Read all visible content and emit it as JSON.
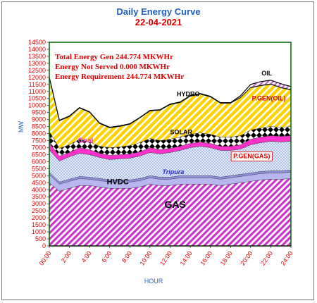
{
  "title": "Daily Energy Curve",
  "subtitle": "22-04-2021",
  "annotations": [
    "Total Energy Gen 244.774 MKWHr",
    "Energy Not Served   0.000 MKWHr",
    "Energy Requirement     244.774 MKWHr"
  ],
  "chart_data": {
    "type": "area",
    "stacked": true,
    "xlabel": "HOUR",
    "ylabel": "MW",
    "ylim": [
      0,
      14500
    ],
    "ystep": 500,
    "xlim": [
      0,
      24
    ],
    "xticks": [
      "00:00",
      "2:00",
      "4:00",
      "6:00",
      "8:00",
      "10:00",
      "12:00",
      "14:00",
      "16:00",
      "18:00",
      "20:00",
      "22:00",
      "24:00"
    ],
    "x": [
      0,
      1,
      2,
      3,
      4,
      5,
      6,
      7,
      8,
      9,
      10,
      11,
      12,
      13,
      14,
      15,
      16,
      17,
      18,
      19,
      20,
      21,
      22,
      23,
      24
    ],
    "series": [
      {
        "name": "GAS",
        "values": [
          4500,
          3900,
          4100,
          4300,
          4300,
          4200,
          4100,
          4100,
          4100,
          4200,
          4400,
          4300,
          4300,
          4400,
          4400,
          4400,
          4400,
          4300,
          4400,
          4500,
          4600,
          4700,
          4750,
          4750,
          4800
        ]
      },
      {
        "name": "HVDC",
        "values": [
          600,
          500,
          500,
          500,
          450,
          450,
          450,
          450,
          450,
          450,
          450,
          450,
          450,
          450,
          450,
          450,
          450,
          450,
          450,
          450,
          450,
          450,
          450,
          450,
          450
        ]
      },
      {
        "name": "Tripura",
        "values": [
          150,
          150,
          150,
          150,
          150,
          150,
          150,
          150,
          150,
          150,
          150,
          150,
          150,
          150,
          150,
          150,
          150,
          150,
          150,
          150,
          150,
          150,
          150,
          150,
          150
        ]
      },
      {
        "name": "P.GEN(GAS)",
        "values": [
          1600,
          1500,
          1600,
          1650,
          1600,
          1500,
          1450,
          1500,
          1550,
          1600,
          1650,
          1650,
          1750,
          1800,
          2000,
          2100,
          2000,
          1900,
          1800,
          1800,
          2000,
          2050,
          2100,
          2050,
          2050
        ]
      },
      {
        "name": "Coal",
        "values": [
          500,
          350,
          300,
          400,
          350,
          300,
          300,
          300,
          300,
          300,
          350,
          300,
          300,
          300,
          300,
          300,
          300,
          300,
          300,
          300,
          400,
          400,
          400,
          400,
          400
        ]
      },
      {
        "name": "SOLAR",
        "values": [
          800,
          550,
          550,
          600,
          550,
          500,
          550,
          550,
          600,
          650,
          650,
          650,
          650,
          650,
          650,
          650,
          650,
          650,
          650,
          650,
          650,
          650,
          650,
          650,
          650
        ]
      },
      {
        "name": "P.GEN(OIL)",
        "values": [
          3800,
          1950,
          2000,
          2200,
          2100,
          1600,
          1400,
          1450,
          1500,
          1750,
          1950,
          2150,
          2450,
          2450,
          2700,
          2750,
          2650,
          2400,
          2400,
          2700,
          3000,
          3000,
          3000,
          2800,
          2600
        ]
      },
      {
        "name": "HYDRO",
        "values": [
          50,
          50,
          50,
          50,
          50,
          50,
          50,
          50,
          50,
          50,
          50,
          50,
          50,
          50,
          50,
          50,
          50,
          50,
          50,
          50,
          50,
          50,
          50,
          50,
          50
        ]
      },
      {
        "name": "OIL",
        "values": [
          0,
          0,
          0,
          0,
          0,
          0,
          0,
          0,
          0,
          0,
          0,
          0,
          0,
          0,
          0,
          0,
          0,
          0,
          0,
          100,
          200,
          250,
          250,
          250,
          200
        ]
      }
    ]
  },
  "colors": {
    "gas": "#cc33cc",
    "hvdc": "#b7b7f0",
    "tripura": "#9090e0",
    "pgen_gas": "#c9d8f4",
    "coal": "#ff33cc",
    "solar": "#000000",
    "pgen_oil": "#ffd200",
    "hydro": "#000000",
    "oil": "#c060d0",
    "plot_border": "#006400",
    "tick_text": "#e00000",
    "axis_label": "#1f5fbf"
  }
}
